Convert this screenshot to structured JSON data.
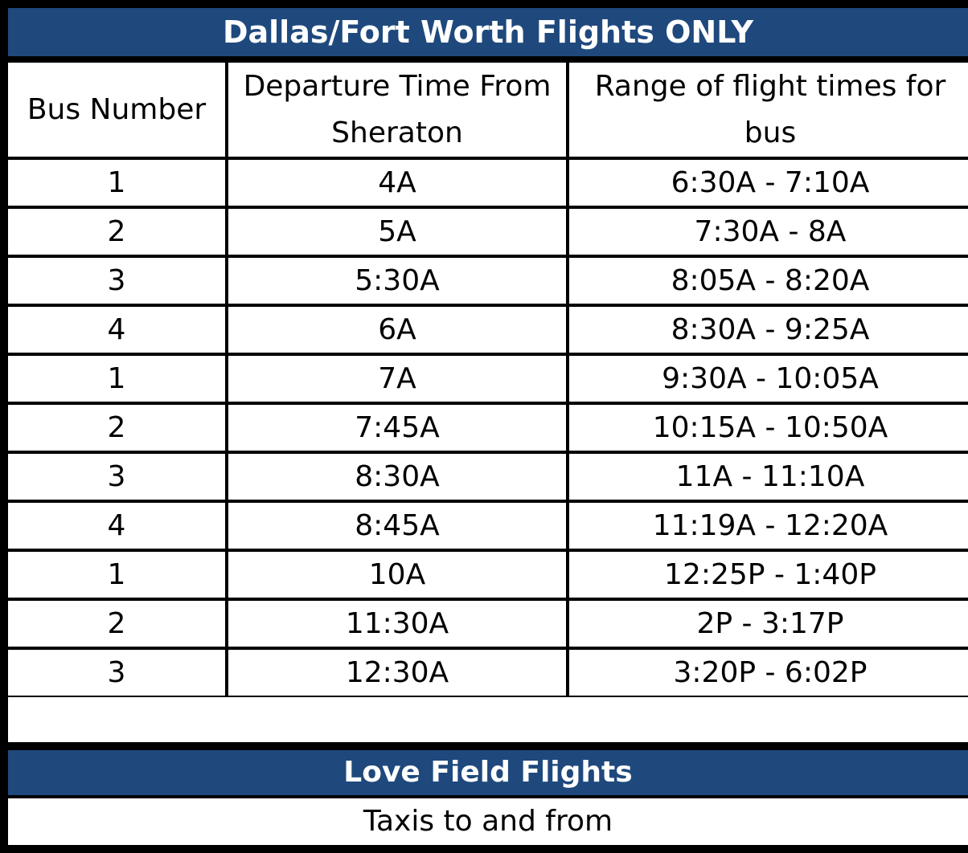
{
  "dfw": {
    "title": "Dallas/Fort Worth Flights ONLY",
    "headers": [
      "Bus Number",
      "Departure Time From Sheraton",
      "Range of flight times for bus"
    ],
    "rows": [
      [
        "1",
        "4A",
        "6:30A - 7:10A"
      ],
      [
        "2",
        "5A",
        "7:30A - 8A"
      ],
      [
        "3",
        "5:30A",
        "8:05A - 8:20A"
      ],
      [
        "4",
        "6A",
        "8:30A - 9:25A"
      ],
      [
        "1",
        "7A",
        "9:30A - 10:05A"
      ],
      [
        "2",
        "7:45A",
        "10:15A - 10:50A"
      ],
      [
        "3",
        "8:30A",
        "11A - 11:10A"
      ],
      [
        "4",
        "8:45A",
        "11:19A - 12:20A"
      ],
      [
        "1",
        "10A",
        "12:25P - 1:40P"
      ],
      [
        "2",
        "11:30A",
        "2P - 3:17P"
      ],
      [
        "3",
        "12:30A",
        "3:20P - 6:02P"
      ]
    ]
  },
  "love_field": {
    "title": "Love Field Flights",
    "note": "Taxis to and from"
  },
  "colors": {
    "header_bar": "#1f497d",
    "grid_lines": "#000000",
    "cell_bg": "#ffffff"
  }
}
